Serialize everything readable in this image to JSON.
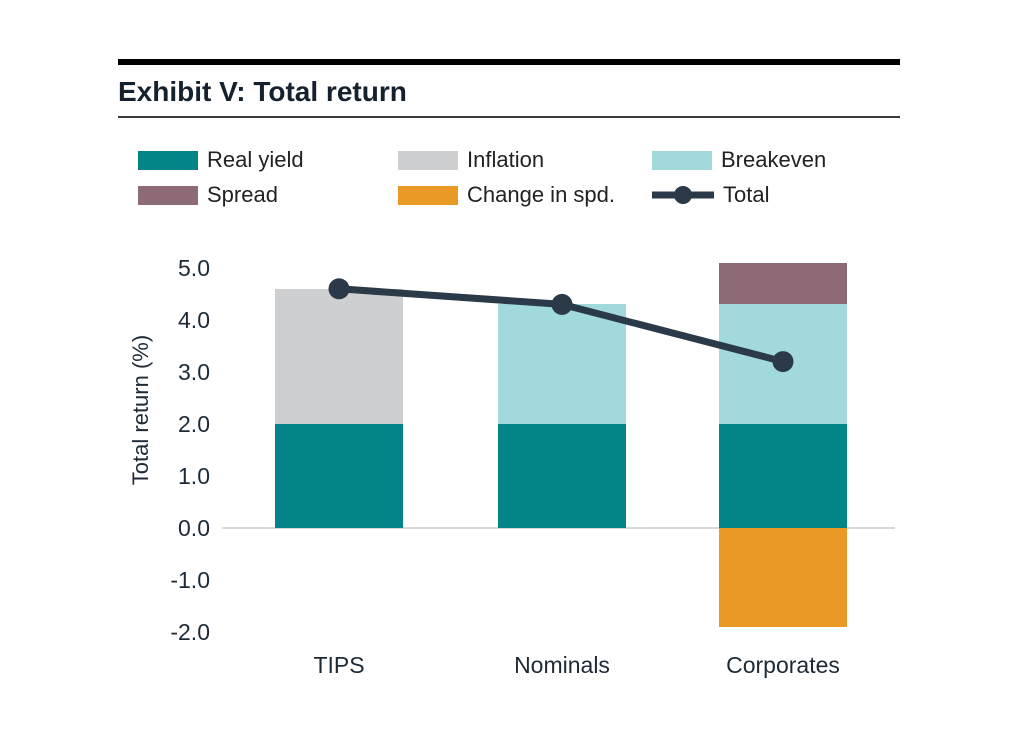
{
  "title": "Exhibit V: Total return",
  "chart_data": {
    "type": "bar",
    "subtype": "stacked-bars-with-total-line",
    "title": "Exhibit V: Total return",
    "categories": [
      "TIPS",
      "Nominals",
      "Corporates"
    ],
    "series": [
      {
        "name": "Real yield",
        "color": "#058487",
        "values": [
          2.0,
          2.0,
          2.0
        ]
      },
      {
        "name": "Inflation",
        "color": "#cdcfd1",
        "values": [
          2.6,
          0,
          0
        ]
      },
      {
        "name": "Breakeven",
        "color": "#a2d9dd",
        "values": [
          0,
          2.3,
          2.3
        ]
      },
      {
        "name": "Spread",
        "color": "#8c6b77",
        "values": [
          0,
          0,
          0.8
        ]
      },
      {
        "name": "Change in spd.",
        "color": "#e99a25",
        "values": [
          0,
          0,
          -1.9
        ]
      }
    ],
    "line_series": {
      "name": "Total",
      "color": "#2b3a48",
      "values": [
        4.6,
        4.3,
        3.2
      ]
    },
    "xlabel": "",
    "ylabel": "Total return (%)",
    "ylim": [
      -2.0,
      5.0
    ],
    "yticks": [
      "5.0",
      "4.0",
      "3.0",
      "2.0",
      "1.0",
      "0.0",
      "-1.0",
      "-2.0"
    ],
    "grid": "zero-line-only",
    "legend_position": "top"
  }
}
